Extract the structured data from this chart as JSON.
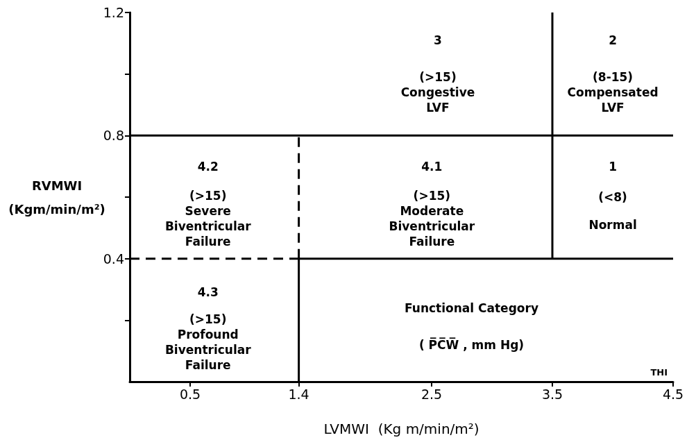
{
  "chart_data": {
    "type": "line",
    "xlabel": "LVMWI  (Kg m/min/m²)",
    "ylabel": "RVMWI\n(Kgm/min/m²)",
    "xlim": [
      0,
      4.5
    ],
    "xticks": [
      0.5,
      1.4,
      2.5,
      3.5,
      4.5
    ],
    "ylim": [
      0,
      1.2
    ],
    "yticks": [
      {
        "value": 0.2,
        "label": null
      },
      0.4,
      {
        "value": 0.6,
        "label": null
      },
      0.8,
      {
        "value": 1.0,
        "label": null
      },
      1.2
    ],
    "grid": false,
    "marker": "none",
    "series": [
      {
        "x": [
          0,
          4.5
        ],
        "values": [
          0.8,
          0.8
        ],
        "color": "#000000",
        "line_style": "solid"
      },
      {
        "x": [
          3.5,
          3.5
        ],
        "values": [
          0.4,
          1.2
        ],
        "color": "#000000",
        "line_style": "solid"
      },
      {
        "x": [
          1.4,
          4.5
        ],
        "values": [
          0.4,
          0.4
        ],
        "color": "#000000",
        "line_style": "solid"
      },
      {
        "x": [
          1.4,
          1.4
        ],
        "values": [
          0,
          0.4
        ],
        "color": "#000000",
        "line_style": "solid"
      },
      {
        "x": [
          1.4,
          1.4
        ],
        "values": [
          0.4,
          0.8
        ],
        "color": "#000000",
        "line_style": "dashed"
      },
      {
        "x": [
          0,
          1.4
        ],
        "values": [
          0.4,
          0.4
        ],
        "color": "#000000",
        "line_style": "dashed"
      }
    ],
    "annotations": [
      "3",
      "(>15) Congestive LVF",
      "2",
      "(8-15) Compensated LVF",
      "4.2",
      "(>15) Severe Biventricular Failure",
      "4.1",
      "(>15) Moderate Biventricular Failure",
      "1",
      "(<8)",
      "Normal",
      "4.3",
      "(>15) Profound Biventricular Failure",
      "Functional Category",
      "( P̅C̅W̅ , mm Hg)",
      "THI"
    ]
  }
}
